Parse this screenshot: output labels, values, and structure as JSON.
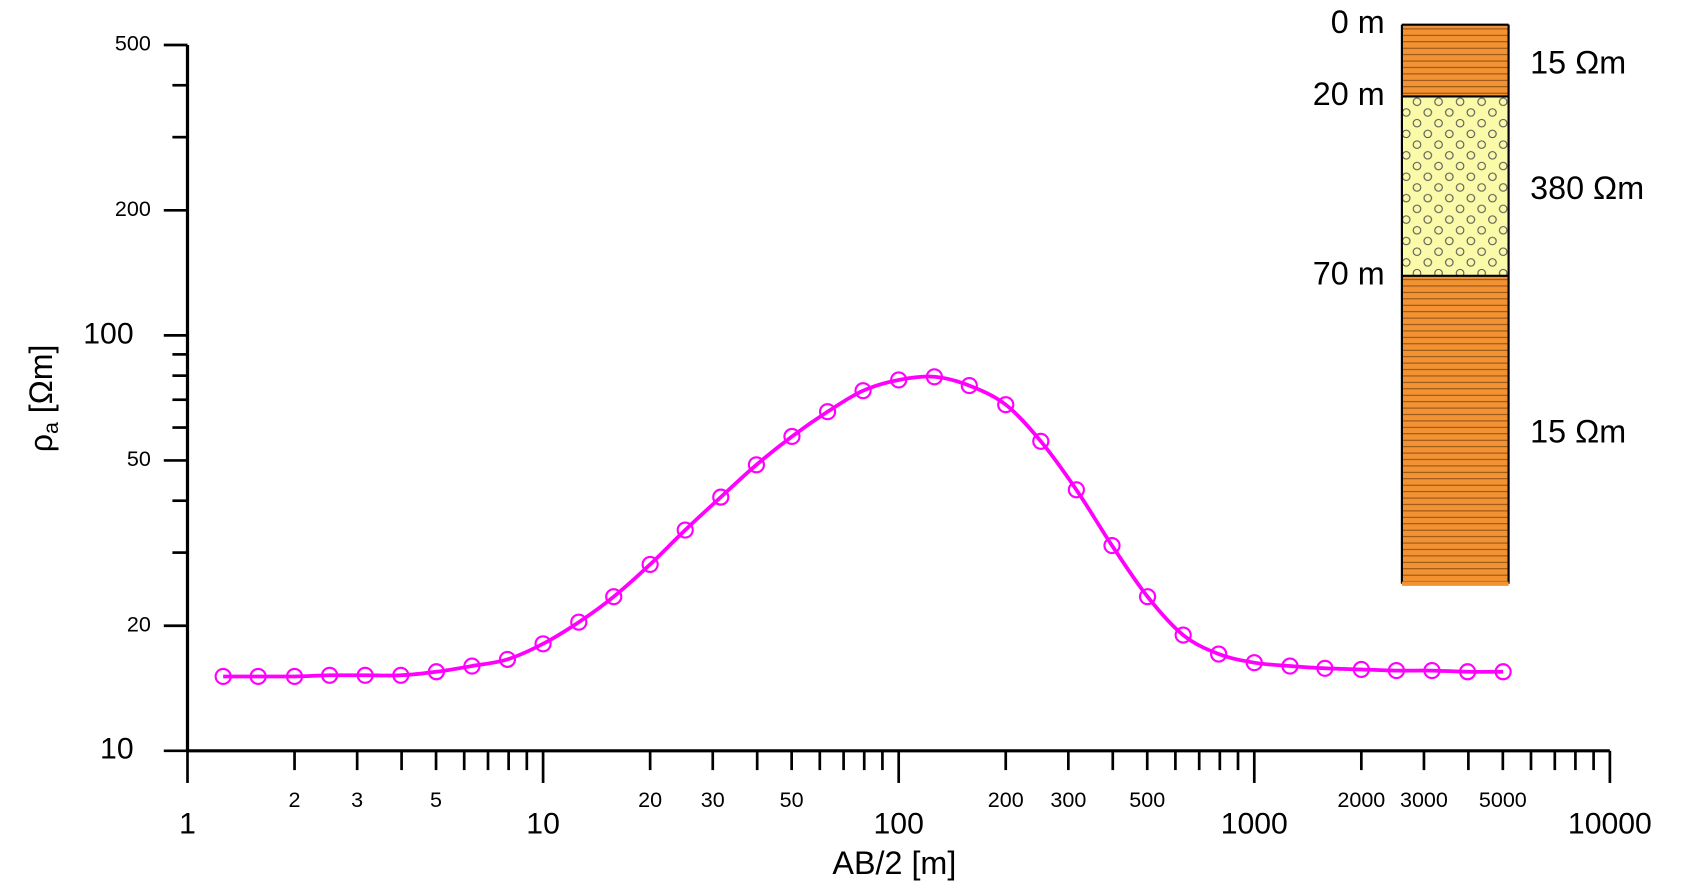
{
  "chart_data": {
    "type": "line",
    "xlabel": "AB/2 [m]",
    "ylabel": {
      "symbol": "ρ",
      "subscript": "a",
      "unit": " [Ωm]"
    },
    "xlog": true,
    "ylog": true,
    "xlim": [
      1,
      10000
    ],
    "ylim": [
      10,
      500
    ],
    "xticks": [
      1,
      2,
      3,
      5,
      10,
      20,
      30,
      50,
      100,
      200,
      300,
      500,
      1000,
      2000,
      3000,
      5000,
      10000
    ],
    "xminor_ticks": [
      4,
      6,
      7,
      8,
      9,
      40,
      60,
      70,
      80,
      90,
      400,
      600,
      700,
      800,
      900,
      4000,
      6000,
      7000,
      8000,
      9000
    ],
    "yticks": [
      10,
      20,
      50,
      100,
      200,
      500
    ],
    "yminor_ticks": [
      30,
      40,
      60,
      70,
      80,
      90,
      300,
      400
    ],
    "x": [
      1.26,
      1.58,
      2,
      2.51,
      3.16,
      3.98,
      5.01,
      6.31,
      7.94,
      10,
      12.6,
      15.8,
      20,
      25.1,
      31.6,
      39.8,
      50.1,
      63.1,
      79.4,
      100,
      126,
      158,
      200,
      251,
      316,
      398,
      501,
      631,
      794,
      1000,
      1260,
      1580,
      2000,
      2510,
      3160,
      3980,
      5010
    ],
    "series": [
      {
        "color": "#ff00ff",
        "values": [
          15.1,
          15.1,
          15.1,
          15.2,
          15.2,
          15.2,
          15.5,
          16.0,
          16.6,
          18.1,
          20.4,
          23.5,
          28.1,
          34.0,
          40.8,
          48.8,
          57.1,
          65.5,
          73.6,
          78.1,
          79.5,
          75.7,
          68.1,
          55.6,
          42.5,
          31.2,
          23.5,
          19.0,
          17.1,
          16.3,
          16.0,
          15.8,
          15.7,
          15.6,
          15.6,
          15.5,
          15.5
        ]
      }
    ],
    "layers": [
      {
        "depth": 0,
        "depth_label": "0 m",
        "resistivity": 15,
        "resistivity_label": "15 Ωm",
        "color": "#f29232",
        "fill": "hatch"
      },
      {
        "depth": 20,
        "depth_label": "20 m",
        "resistivity": 380,
        "resistivity_label": "380 Ωm",
        "color": "#fafaa8",
        "fill": "dots"
      },
      {
        "depth": 70,
        "depth_label": "70 m",
        "resistivity": 15,
        "resistivity_label": "15 Ωm",
        "color": "#f29232",
        "fill": "hatch"
      }
    ]
  }
}
